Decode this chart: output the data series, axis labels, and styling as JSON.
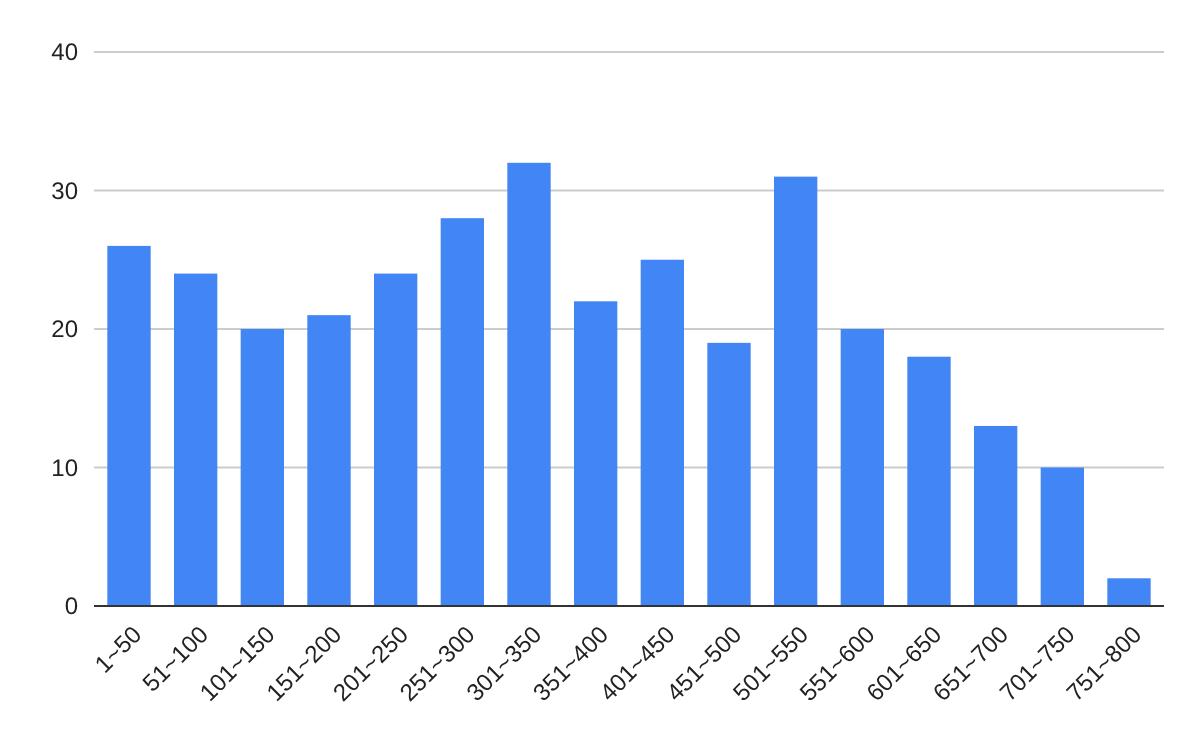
{
  "chart_data": {
    "type": "bar",
    "categories": [
      "1~50",
      "51~100",
      "101~150",
      "151~200",
      "201~250",
      "251~300",
      "301~350",
      "351~400",
      "401~450",
      "451~500",
      "501~550",
      "551~600",
      "601~650",
      "651~700",
      "701~750",
      "751~800"
    ],
    "values": [
      26,
      24,
      20,
      21,
      24,
      28,
      32,
      22,
      25,
      19,
      31,
      20,
      18,
      13,
      10,
      2
    ],
    "color": "#4285f4",
    "ylim": [
      0,
      40
    ],
    "yticks": [
      0,
      10,
      20,
      30,
      40
    ],
    "grid": "y"
  }
}
